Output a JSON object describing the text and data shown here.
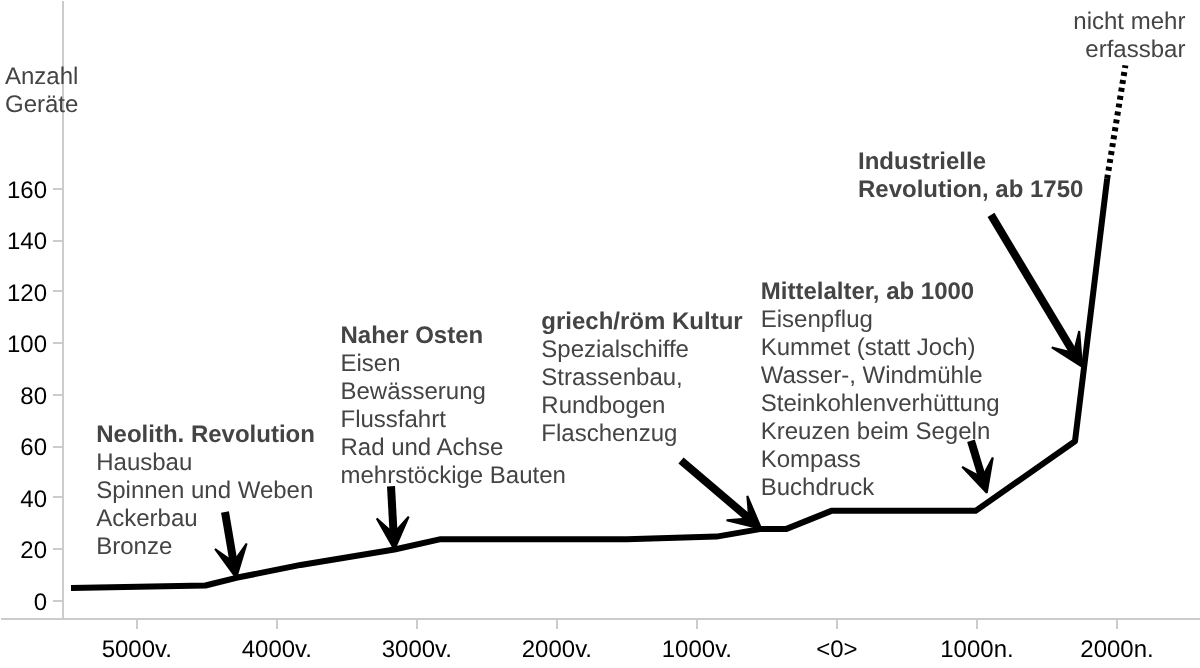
{
  "chart_data": {
    "type": "line",
    "ylabel": "Anzahl\nGeräte",
    "xlim": [
      -5970,
      2600
    ],
    "ylim": [
      -7,
      233
    ],
    "xticks": [
      {
        "value": -5000,
        "label": "5000v."
      },
      {
        "value": -4000,
        "label": "4000v."
      },
      {
        "value": -3000,
        "label": "3000v."
      },
      {
        "value": -2000,
        "label": "2000v."
      },
      {
        "value": -1000,
        "label": "1000v."
      },
      {
        "value": 0,
        "label": "<0>"
      },
      {
        "value": 1000,
        "label": "1000n."
      },
      {
        "value": 2000,
        "label": "2000n."
      }
    ],
    "yticks": [
      0,
      20,
      40,
      60,
      80,
      100,
      120,
      140,
      160
    ],
    "grid": false,
    "marker": "none",
    "series": [
      {
        "color": "#000000",
        "line_style": "solid",
        "x": [
          -5470,
          -4510,
          -4290,
          -3830,
          -3160,
          -2830,
          -1500,
          -860,
          -540,
          -360,
          -40,
          990,
          1700,
          1930
        ],
        "values": [
          5,
          6,
          9,
          14,
          20,
          24,
          24,
          25,
          28,
          28,
          35,
          35,
          62,
          164
        ]
      },
      {
        "color": "#000000",
        "line_style": "dotted",
        "x": [
          1930,
          2060
        ],
        "values": [
          164,
          208
        ]
      }
    ],
    "annotations": [
      {
        "text": "Neolith. Revolution\nHausbau\nSpinnen und Weben\nAckerbau\nBronze",
        "x": -4290,
        "y": 9
      },
      {
        "text": "Naher Osten\nEisen\nBewässerung\nFlussfahrt\nRad und Achse\nmehrstöckige Bauten",
        "x": -3160,
        "y": 20
      },
      {
        "text": "griech/röm Kultur\nSpezialschiffe\nStrassenbau,\nRundbogen\nFlaschenzug",
        "x": -540,
        "y": 28
      },
      {
        "text": "Mittelalter, ab 1000\nEisenpflug\nKummet (statt Joch)\nWasser-, Windmühle\nSteinkohlenverhüttung\nKreuzen beim Segeln\nKompass\nBuchdruck",
        "x": 1070,
        "y": 42
      },
      {
        "text": "Industrielle\nRevolution, ab 1750",
        "x": 1750,
        "y": 91
      },
      {
        "text": "nicht mehr\nerfassbar",
        "x": 2060,
        "y": 208
      }
    ]
  }
}
